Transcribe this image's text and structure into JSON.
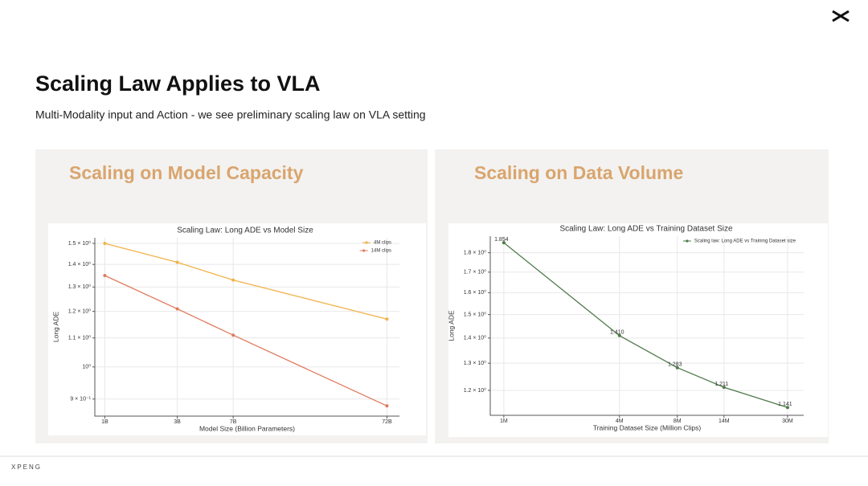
{
  "slide": {
    "title": "Scaling Law Applies to VLA",
    "subtitle": "Multi-Modality input and Action - we see preliminary scaling law on VLA setting",
    "footer": "XPENG"
  },
  "chart_data": [
    {
      "type": "line",
      "heading": "Scaling on Model Capacity",
      "title": "Scaling Law: Long ADE vs Model Size",
      "xlabel": "Model Size (Billion Parameters)",
      "ylabel": "Long ADE",
      "x": [
        1,
        3,
        7,
        72
      ],
      "xlog": true,
      "ylog": true,
      "grid": true,
      "legend": "upper right",
      "xlim": [
        0.86,
        87
      ],
      "xticks": [
        {
          "value": 1,
          "label": "1B"
        },
        {
          "value": 3,
          "label": "3B"
        },
        {
          "value": 7,
          "label": "7B"
        },
        {
          "value": 72,
          "label": "72B"
        }
      ],
      "ylim": [
        0.851,
        1.528
      ],
      "yticks": [
        {
          "value": 0.9,
          "label": "9 × 10⁻¹"
        },
        {
          "value": 1,
          "label": "10⁰"
        },
        {
          "value": 1.1,
          "label": "1.1 × 10⁰"
        },
        {
          "value": 1.2,
          "label": "1.2 × 10⁰"
        },
        {
          "value": 1.3,
          "label": "1.3 × 10⁰"
        },
        {
          "value": 1.4,
          "label": "1.4 × 10⁰"
        },
        {
          "value": 1.5,
          "label": "1.5 × 10⁰"
        }
      ],
      "series": [
        {
          "name": "4M clips",
          "color": "#f2b24a",
          "values": [
            1.5,
            1.41,
            1.33,
            1.17
          ]
        },
        {
          "name": "14M clips",
          "color": "#e07b5e",
          "values": [
            1.35,
            1.21,
            1.11,
            0.88
          ]
        }
      ]
    },
    {
      "type": "line",
      "heading": "Scaling on Data Volume",
      "title": "Scaling Law: Long ADE vs Training Dataset Size",
      "xlabel": "Training Dataset Size (Million Clips)",
      "ylabel": "Long ADE",
      "x": [
        1,
        4,
        8,
        14,
        30
      ],
      "xlog": true,
      "ylog": true,
      "grid": true,
      "legend": "upper right",
      "xlim": [
        0.85,
        36.4
      ],
      "xticks": [
        {
          "value": 1,
          "label": "1M"
        },
        {
          "value": 4,
          "label": "4M"
        },
        {
          "value": 8,
          "label": "8M"
        },
        {
          "value": 14,
          "label": "14M"
        },
        {
          "value": 30,
          "label": "30M"
        }
      ],
      "ylim": [
        1.115,
        1.89
      ],
      "yticks": [
        {
          "value": 1.2,
          "label": "1.2 × 10⁰"
        },
        {
          "value": 1.3,
          "label": "1.3 × 10⁰"
        },
        {
          "value": 1.4,
          "label": "1.4 × 10⁰"
        },
        {
          "value": 1.5,
          "label": "1.5 × 10⁰"
        },
        {
          "value": 1.6,
          "label": "1.6 × 10⁰"
        },
        {
          "value": 1.7,
          "label": "1.7 × 10⁰"
        },
        {
          "value": 1.8,
          "label": "1.8 × 10⁰"
        }
      ],
      "series": [
        {
          "name": "Scaling law: Long ADE vs Training Dataset size",
          "color": "#4f7a4a",
          "values": [
            1.854,
            1.41,
            1.283,
            1.211,
            1.141
          ],
          "value_labels": [
            "1.854",
            "1.410",
            "1.283",
            "1.211",
            "1.141"
          ]
        }
      ]
    }
  ]
}
